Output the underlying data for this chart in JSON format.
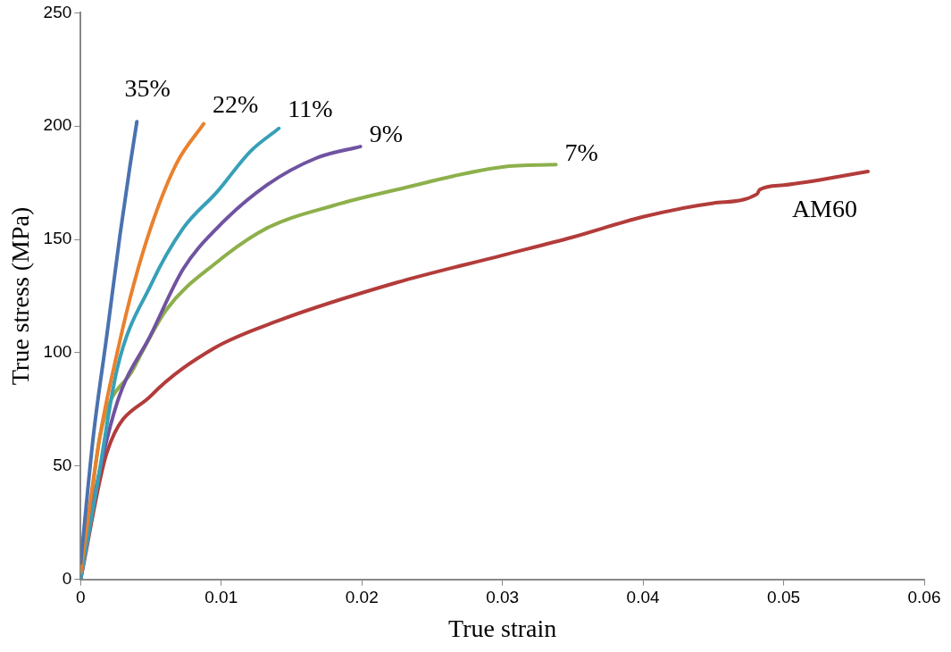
{
  "chart_data": {
    "type": "line",
    "xlabel": "True strain",
    "ylabel": "True stress (MPa)",
    "xlim": [
      0,
      0.06
    ],
    "xticks": [
      0,
      0.01,
      0.02,
      0.03,
      0.04,
      0.05,
      0.06
    ],
    "ylim": [
      0,
      250
    ],
    "yticks": [
      0,
      50,
      100,
      150,
      200,
      250
    ],
    "grid": false,
    "legend": false,
    "marker": "none",
    "line_style": "solid",
    "series": [
      {
        "name": "35%",
        "color": "#4a72b0",
        "x": [
          0,
          0.0009,
          0.00187,
          0.0028,
          0.0035,
          0.004
        ],
        "values": [
          7,
          63,
          108,
          152,
          182,
          202
        ]
      },
      {
        "name": "22%",
        "color": "#e9812d",
        "x": [
          0,
          0.00137,
          0.0026,
          0.00377,
          0.0052,
          0.00686,
          0.00875
        ],
        "values": [
          3,
          63,
          100,
          130,
          159,
          184,
          201
        ]
      },
      {
        "name": "11%",
        "color": "#37a0b8",
        "x": [
          0,
          0.00116,
          0.0026,
          0.005,
          0.0073,
          0.0097,
          0.0121,
          0.0141
        ],
        "values": [
          0,
          41,
          93,
          130,
          155,
          171,
          189,
          199
        ]
      },
      {
        "name": "9%",
        "color": "#7053a0",
        "x": [
          0,
          0.0009,
          0.0026,
          0.005,
          0.0073,
          0.0097,
          0.01325,
          0.0168,
          0.0199
        ],
        "values": [
          0,
          34,
          78,
          108,
          137,
          155,
          174,
          186,
          191
        ]
      },
      {
        "name": "7%",
        "color": "#8db04b",
        "x": [
          0,
          0.00045,
          0.00137,
          0.00377,
          0.0061,
          0.0097,
          0.01325,
          0.018,
          0.0225,
          0.03,
          0.0338
        ],
        "values": [
          0,
          19,
          63,
          93,
          119,
          140,
          155,
          165,
          172,
          182,
          183
        ]
      },
      {
        "name": "AM60",
        "color": "#b23c3a",
        "x": [
          0,
          0.00187,
          0.005,
          0.0095,
          0.014,
          0.0225,
          0.03,
          0.035,
          0.04,
          0.045,
          0.0481,
          0.0483,
          0.05,
          0.056
        ],
        "values": [
          0,
          56,
          81,
          102,
          114,
          131,
          143,
          151,
          160,
          166,
          170,
          172,
          174,
          180
        ]
      }
    ]
  }
}
